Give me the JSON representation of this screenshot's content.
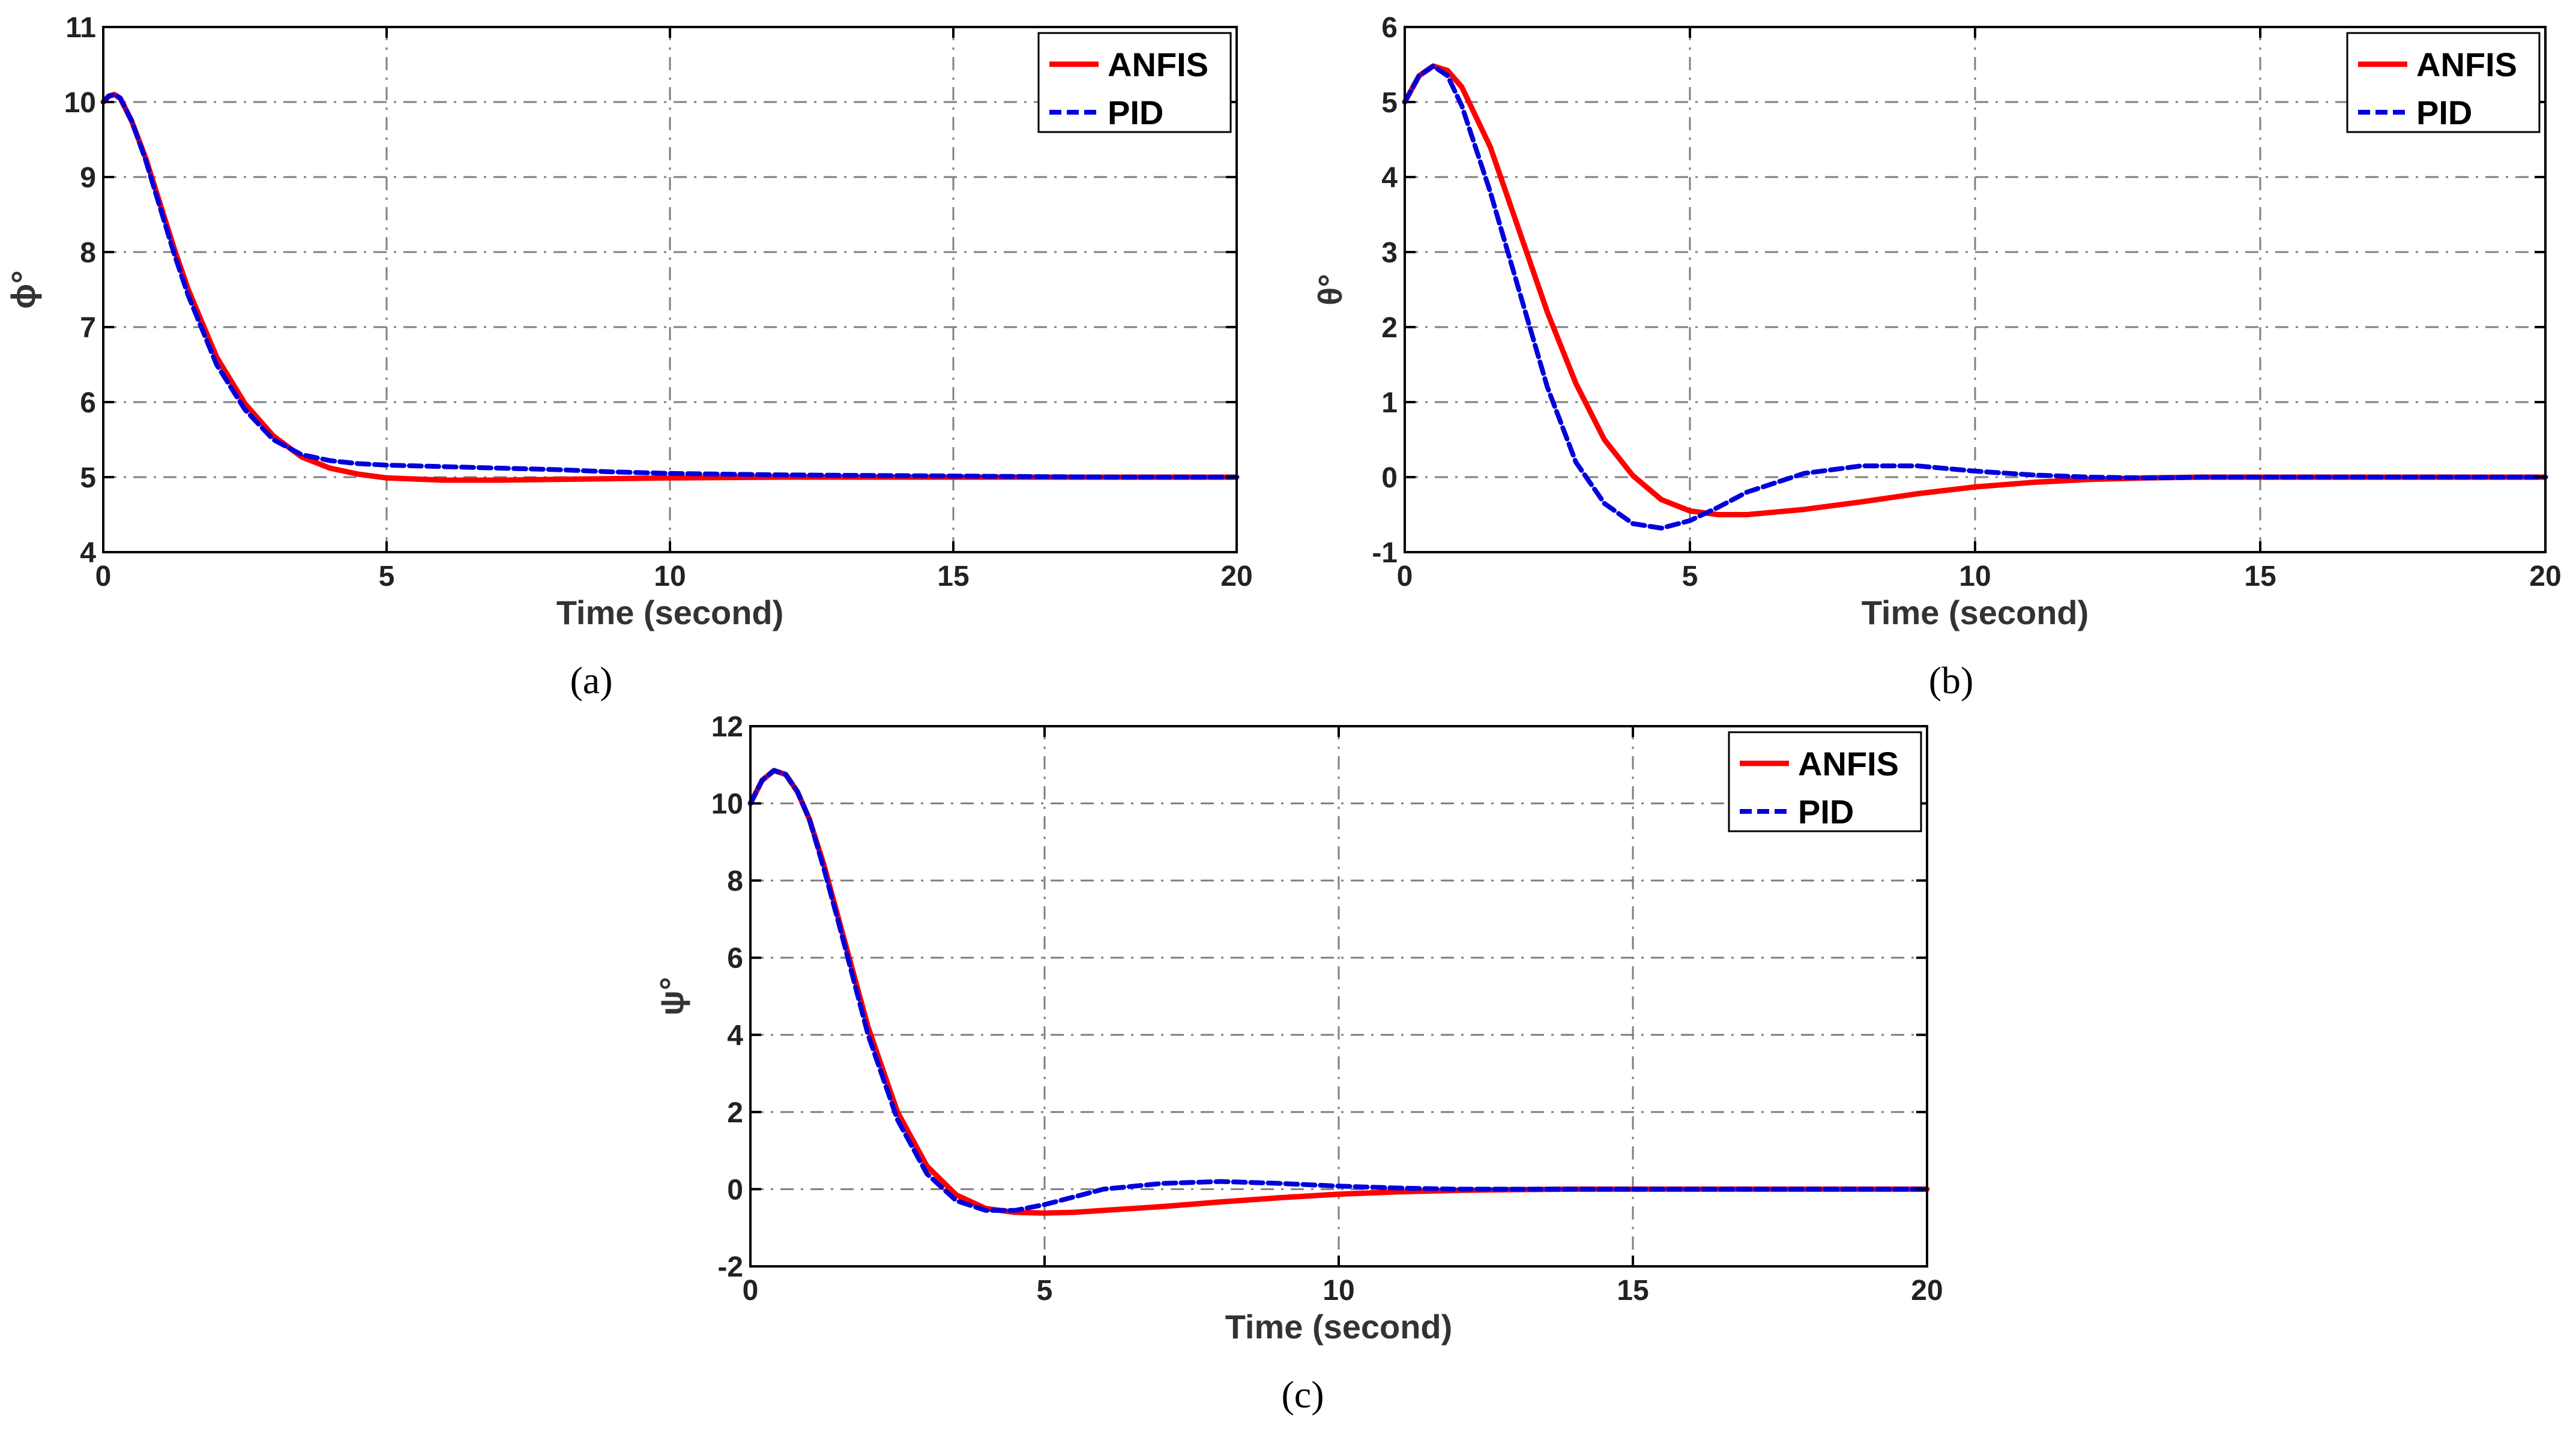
{
  "figure": {
    "captions": [
      "(a)",
      "(b)",
      "(c)"
    ]
  },
  "colors": {
    "anfis": "#ff0000",
    "pid": "#0000dd",
    "grid": "#7f7f7f",
    "axes": "#000000"
  },
  "chart_data": [
    {
      "type": "line",
      "caption": "(a)",
      "xlabel": "Time (second)",
      "ylabel": "ϕ°",
      "xlim": [
        0,
        20
      ],
      "ylim": [
        4,
        11
      ],
      "xticks": [
        0,
        5,
        10,
        15,
        20
      ],
      "yticks": [
        4,
        5,
        6,
        7,
        8,
        9,
        10,
        11
      ],
      "grid": true,
      "legend": "top-right",
      "series": [
        {
          "name": "ANFIS",
          "style": "solid",
          "x": [
            0,
            0.1,
            0.2,
            0.3,
            0.5,
            0.75,
            1,
            1.25,
            1.5,
            2,
            2.5,
            3,
            3.5,
            4,
            4.5,
            5,
            6,
            7,
            8,
            9,
            10,
            12,
            14,
            16,
            18,
            20
          ],
          "y": [
            10.0,
            10.08,
            10.1,
            10.05,
            9.75,
            9.25,
            8.65,
            8.05,
            7.5,
            6.6,
            5.98,
            5.55,
            5.27,
            5.12,
            5.04,
            4.99,
            4.96,
            4.96,
            4.97,
            4.98,
            4.99,
            5.0,
            5.0,
            5.0,
            5.0,
            5.0
          ]
        },
        {
          "name": "PID",
          "style": "dashed",
          "x": [
            0,
            0.1,
            0.2,
            0.3,
            0.5,
            0.75,
            1,
            1.25,
            1.5,
            2,
            2.5,
            3,
            3.5,
            4,
            4.5,
            5,
            6,
            7,
            8,
            9,
            10,
            12,
            14,
            16,
            18,
            20
          ],
          "y": [
            10.0,
            10.08,
            10.1,
            10.05,
            9.75,
            9.22,
            8.6,
            7.98,
            7.42,
            6.5,
            5.9,
            5.5,
            5.3,
            5.22,
            5.18,
            5.16,
            5.14,
            5.12,
            5.1,
            5.07,
            5.05,
            5.03,
            5.02,
            5.01,
            5.0,
            5.0
          ]
        }
      ]
    },
    {
      "type": "line",
      "caption": "(b)",
      "xlabel": "Time (second)",
      "ylabel": "θ°",
      "xlim": [
        0,
        20
      ],
      "ylim": [
        -1,
        6
      ],
      "xticks": [
        0,
        5,
        10,
        15,
        20
      ],
      "yticks": [
        -1,
        0,
        1,
        2,
        3,
        4,
        5,
        6
      ],
      "grid": true,
      "legend": "top-right",
      "series": [
        {
          "name": "ANFIS",
          "style": "solid",
          "x": [
            0,
            0.25,
            0.5,
            0.75,
            1,
            1.5,
            2,
            2.5,
            3,
            3.5,
            4,
            4.5,
            5,
            5.5,
            6,
            7,
            8,
            9,
            10,
            11,
            12,
            13,
            14,
            16,
            18,
            20
          ],
          "y": [
            5.0,
            5.35,
            5.48,
            5.42,
            5.2,
            4.4,
            3.3,
            2.2,
            1.25,
            0.5,
            0.02,
            -0.3,
            -0.45,
            -0.5,
            -0.5,
            -0.43,
            -0.33,
            -0.22,
            -0.13,
            -0.07,
            -0.03,
            -0.01,
            0.0,
            0.0,
            0.0,
            0.0
          ]
        },
        {
          "name": "PID",
          "style": "dashed",
          "x": [
            0,
            0.25,
            0.5,
            0.75,
            1,
            1.5,
            2,
            2.5,
            3,
            3.5,
            4,
            4.5,
            5,
            5.5,
            6,
            7,
            8,
            9,
            10,
            11,
            12,
            13,
            14,
            16,
            18,
            20
          ],
          "y": [
            5.0,
            5.35,
            5.48,
            5.35,
            4.95,
            3.8,
            2.5,
            1.2,
            0.2,
            -0.35,
            -0.62,
            -0.68,
            -0.58,
            -0.4,
            -0.2,
            0.05,
            0.15,
            0.15,
            0.08,
            0.03,
            0.0,
            -0.01,
            0.0,
            0.0,
            0.0,
            0.0
          ]
        }
      ]
    },
    {
      "type": "line",
      "caption": "(c)",
      "xlabel": "Time (second)",
      "ylabel": "ψ°",
      "xlim": [
        0,
        20
      ],
      "ylim": [
        -2,
        12
      ],
      "xticks": [
        0,
        5,
        10,
        15,
        20
      ],
      "yticks": [
        -2,
        0,
        2,
        4,
        6,
        8,
        10,
        12
      ],
      "grid": true,
      "legend": "top-right",
      "series": [
        {
          "name": "ANFIS",
          "style": "solid",
          "x": [
            0,
            0.2,
            0.4,
            0.6,
            0.8,
            1,
            1.25,
            1.5,
            2,
            2.5,
            3,
            3.5,
            4,
            4.5,
            5,
            5.5,
            6,
            7,
            8,
            9,
            10,
            11,
            12,
            13,
            14,
            16,
            18,
            20
          ],
          "y": [
            10.0,
            10.6,
            10.85,
            10.75,
            10.3,
            9.6,
            8.4,
            7.0,
            4.2,
            2.0,
            0.6,
            -0.15,
            -0.5,
            -0.6,
            -0.62,
            -0.6,
            -0.55,
            -0.45,
            -0.33,
            -0.22,
            -0.13,
            -0.07,
            -0.03,
            -0.01,
            0.0,
            0.0,
            0.0,
            0.0
          ]
        },
        {
          "name": "PID",
          "style": "dashed",
          "x": [
            0,
            0.2,
            0.4,
            0.6,
            0.8,
            1,
            1.25,
            1.5,
            2,
            2.5,
            3,
            3.5,
            4,
            4.5,
            5,
            5.5,
            6,
            7,
            8,
            9,
            10,
            11,
            12,
            13,
            14,
            16,
            18,
            20
          ],
          "y": [
            10.0,
            10.6,
            10.85,
            10.75,
            10.3,
            9.6,
            8.3,
            6.9,
            4.0,
            1.8,
            0.4,
            -0.3,
            -0.55,
            -0.55,
            -0.4,
            -0.2,
            0.0,
            0.15,
            0.2,
            0.15,
            0.08,
            0.03,
            0.0,
            0.0,
            0.0,
            0.0,
            0.0,
            0.0
          ]
        }
      ]
    }
  ]
}
